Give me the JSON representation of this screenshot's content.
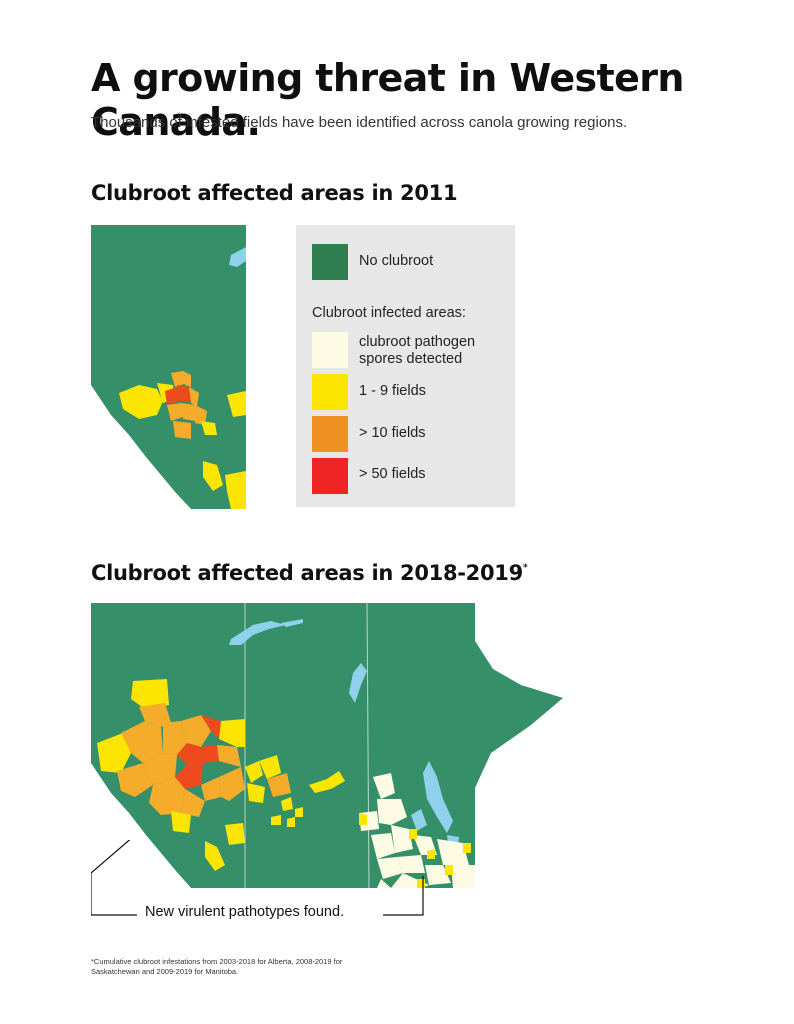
{
  "title": "A growing threat in Western Canada.",
  "subtitle": "Thousands of infested fields have been identified across canola growing regions.",
  "section1": {
    "heading": "Clubroot affected areas in 2011"
  },
  "section2": {
    "heading": "Clubroot affected areas in 2018-2019",
    "heading_mark": "*"
  },
  "legend": {
    "no_clubroot": "No clubroot",
    "infected_heading": "Clubroot infected areas:",
    "items": [
      {
        "label": "clubroot pathogen spores detected",
        "line1": "clubroot pathogen",
        "line2": "spores detected",
        "color": "#fdfbe4"
      },
      {
        "label": "1 - 9 fields",
        "color": "#fce500"
      },
      {
        "label": "> 10 fields",
        "color": "#ef9122"
      },
      {
        "label": "> 50 fields",
        "color": "#ee2424"
      }
    ],
    "no_clubroot_color": "#2e7d4f"
  },
  "colors": {
    "land": "#35906a",
    "water": "#8fd0ea",
    "spores": "#fdfbe4",
    "low": "#fce500",
    "mid": "#f4ac2a",
    "high": "#ee4a1e"
  },
  "callout": "New virulent pathotypes found.",
  "footnote": "*Cumulative clubroot infestations from 2003-2018 for Alberta, 2008-2019 for Saskatchewan and 2009-2019 for Manitoba."
}
